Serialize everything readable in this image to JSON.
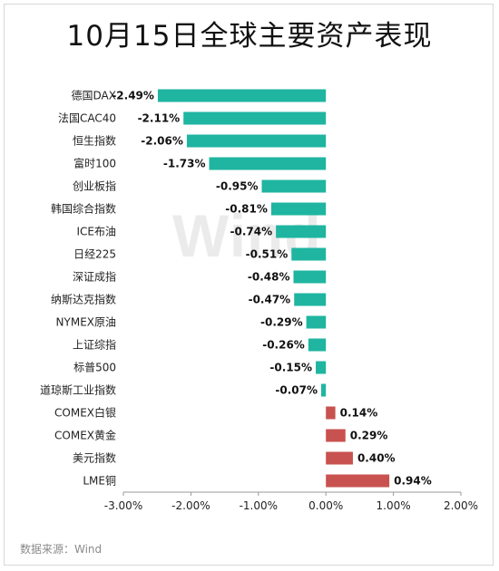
{
  "title": "10月15日全球主要资产表现",
  "watermark": "Wind",
  "source": "数据来源：Wind",
  "colors": {
    "negative": "#1fb5a0",
    "positive": "#c8524f",
    "axis": "#999999",
    "text": "#222222"
  },
  "chart_data": {
    "type": "bar",
    "orientation": "horizontal",
    "categories": [
      "德国DAX",
      "法国CAC40",
      "恒生指数",
      "富时100",
      "创业板指",
      "韩国综合指数",
      "ICE布油",
      "日经225",
      "深证成指",
      "纳斯达克指数",
      "NYMEX原油",
      "上证综指",
      "标普500",
      "道琼斯工业指数",
      "COMEX白银",
      "COMEX黄金",
      "美元指数",
      "LME铜"
    ],
    "values": [
      -2.49,
      -2.11,
      -2.06,
      -1.73,
      -0.95,
      -0.81,
      -0.74,
      -0.51,
      -0.48,
      -0.47,
      -0.29,
      -0.26,
      -0.15,
      -0.07,
      0.14,
      0.29,
      0.4,
      0.94
    ],
    "value_labels": [
      "-2.49%",
      "-2.11%",
      "-2.06%",
      "-1.73%",
      "-0.95%",
      "-0.81%",
      "-0.74%",
      "-0.51%",
      "-0.48%",
      "-0.47%",
      "-0.29%",
      "-0.26%",
      "-0.15%",
      "-0.07%",
      "0.14%",
      "0.29%",
      "0.40%",
      "0.94%"
    ],
    "xlim": [
      -3.0,
      2.0
    ],
    "xticks": [
      -3,
      -2,
      -1,
      0,
      1,
      2
    ],
    "xtick_labels": [
      "-3.00%",
      "-2.00%",
      "-1.00%",
      "0.00%",
      "1.00%",
      "2.00%"
    ],
    "grid": false,
    "legend": false
  }
}
